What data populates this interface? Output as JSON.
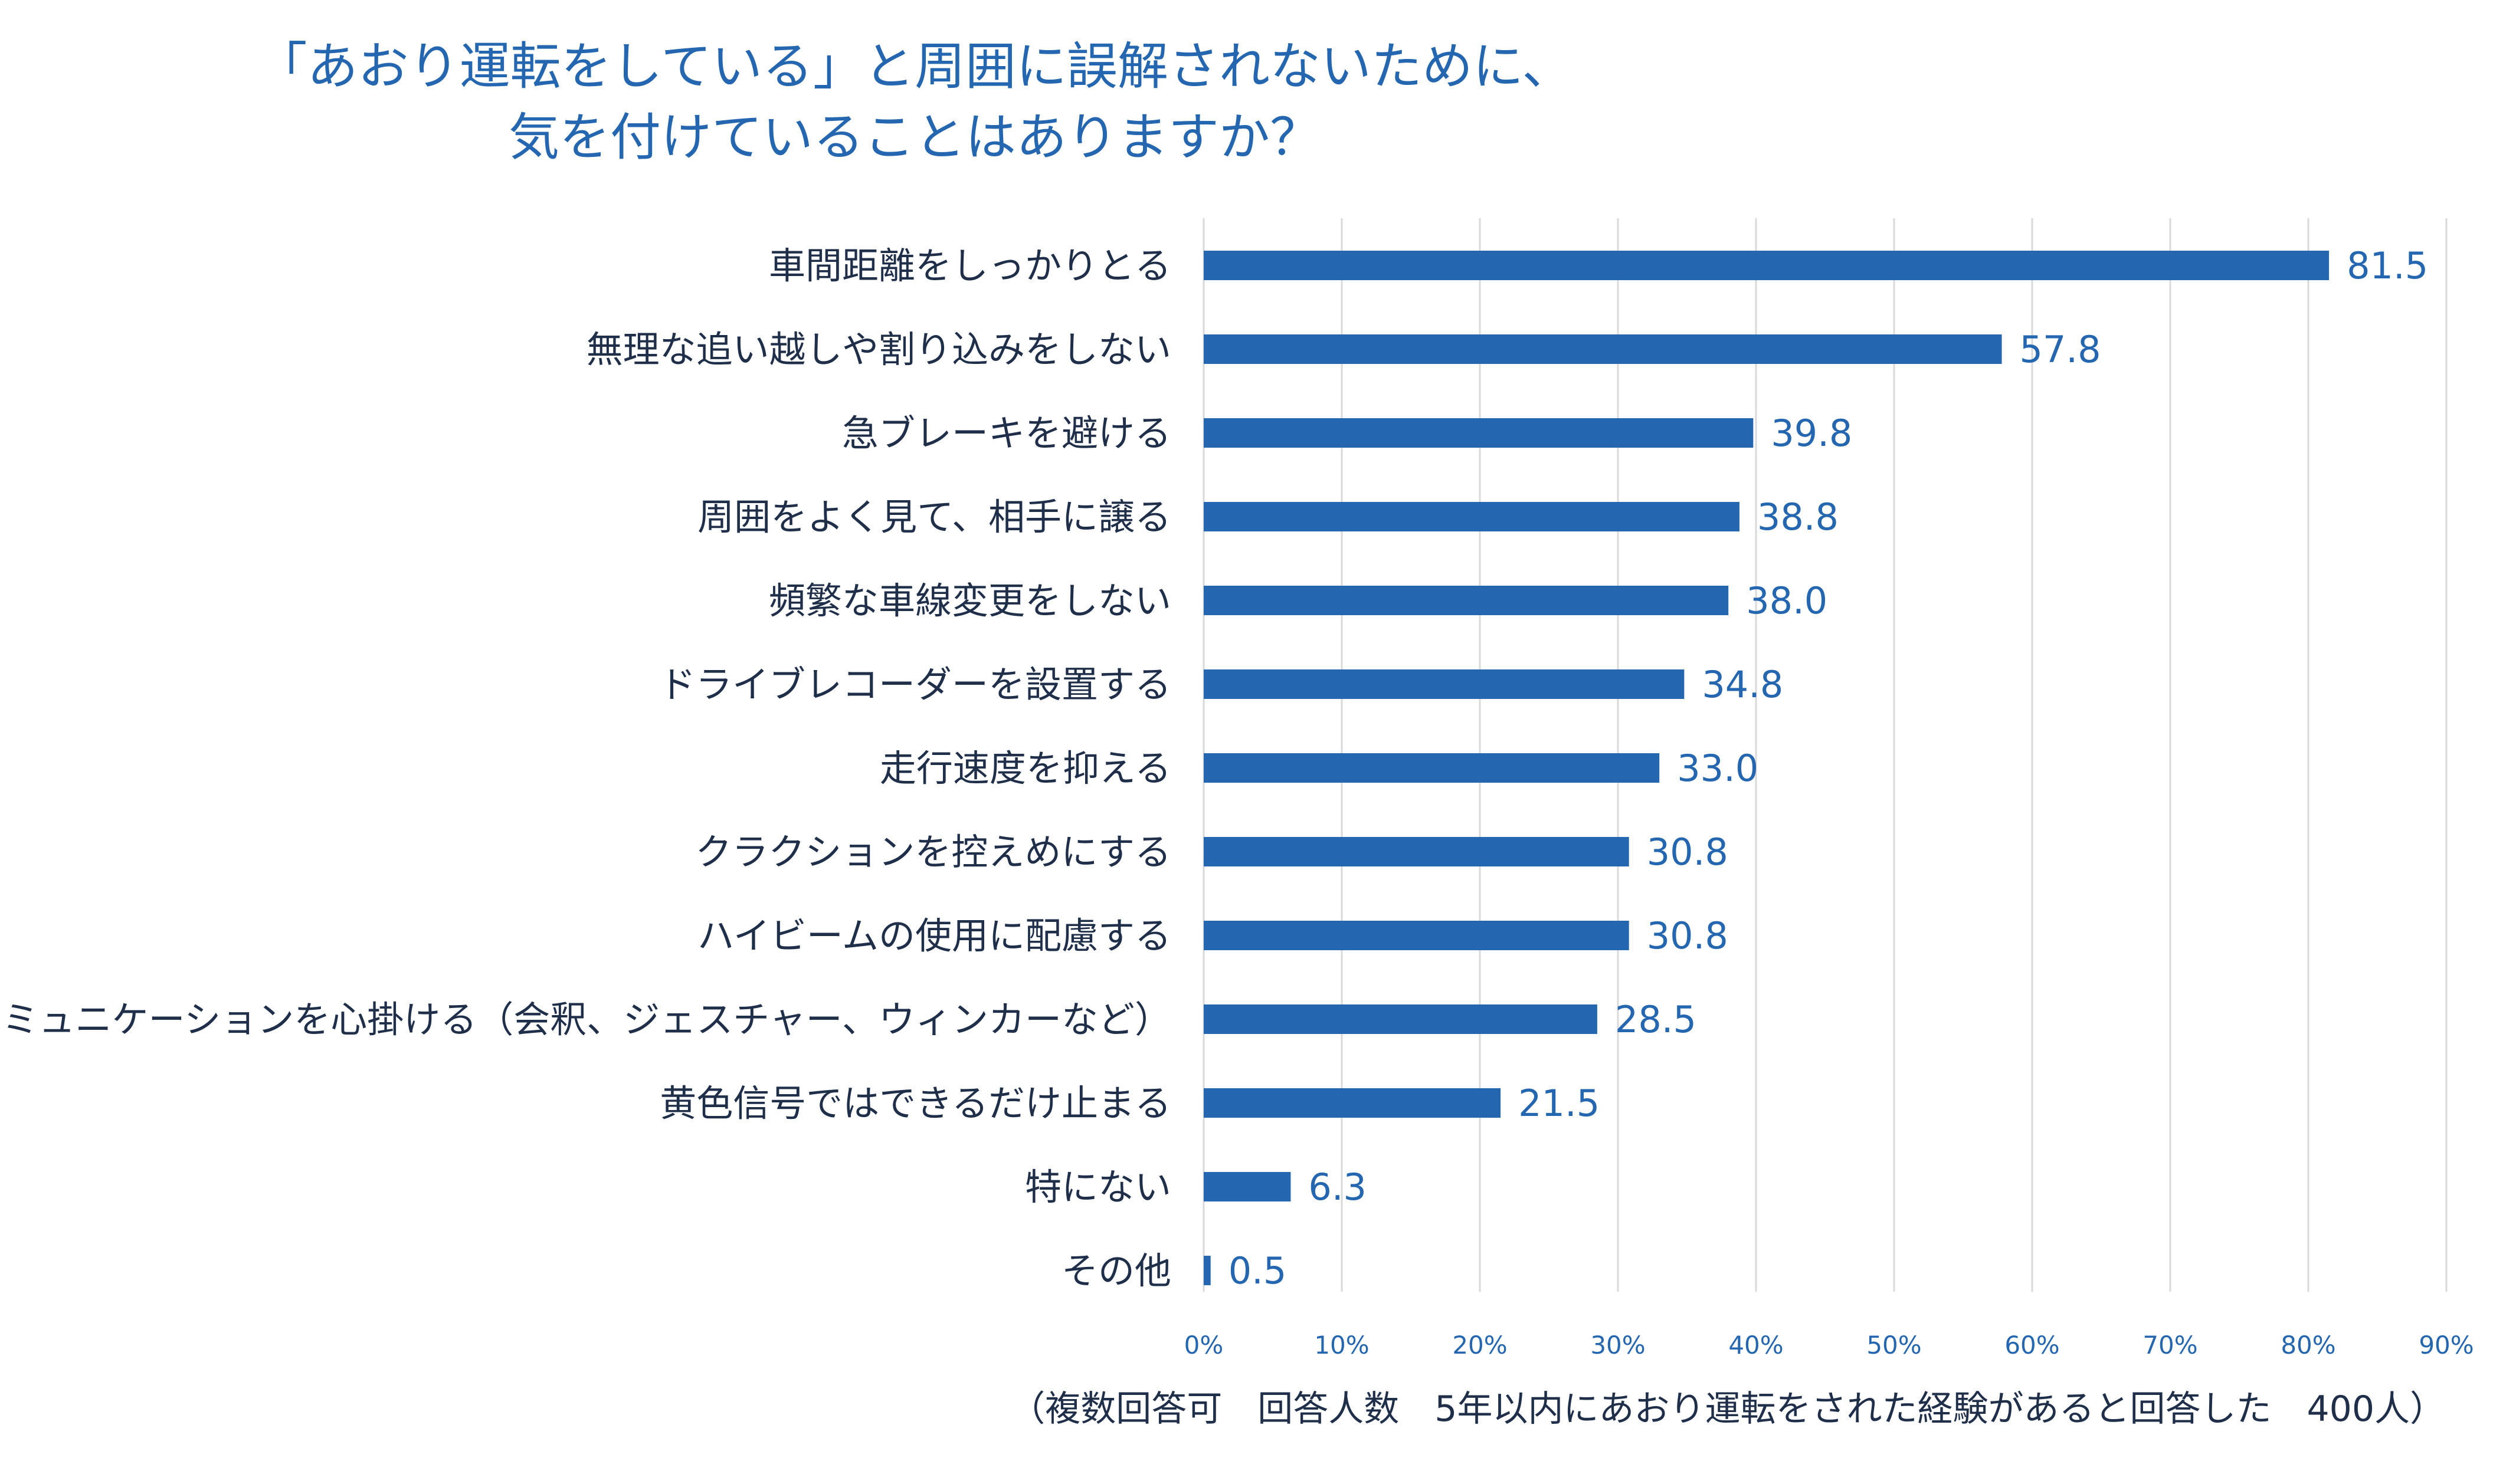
{
  "title_line1": "「あおり運転をしている」と周囲に誤解されないために、",
  "title_line2": "気を付けていることはありますか？",
  "note": "（複数回答可　回答人数　5年以内にあおり運転をされた経験があると回答した　400人）",
  "colors": {
    "bar": "#2467b0",
    "title": "#2467b0",
    "text": "#1f2f4a",
    "grid": "#d9d9d9"
  },
  "chart_data": {
    "type": "bar",
    "orientation": "horizontal",
    "categories": [
      "車間距離をしっかりとる",
      "無理な追い越しや割り込みをしない",
      "急ブレーキを避ける",
      "周囲をよく見て、相手に譲る",
      "頻繁な車線変更をしない",
      "ドライブレコーダーを設置する",
      "走行速度を抑える",
      "クラクションを控えめにする",
      "ハイビームの使用に配慮する",
      "コミュニケーションを心掛ける（会釈、ジェスチャー、ウィンカーなど）",
      "黄色信号ではできるだけ止まる",
      "特にない",
      "その他"
    ],
    "values": [
      81.5,
      57.8,
      39.8,
      38.8,
      38.0,
      34.8,
      33.0,
      30.8,
      30.8,
      28.5,
      21.5,
      6.3,
      0.5
    ],
    "value_labels": [
      "81.5",
      "57.8",
      "39.8",
      "38.8",
      "38.0",
      "34.8",
      "33.0",
      "30.8",
      "30.8",
      "28.5",
      "21.5",
      "6.3",
      "0.5"
    ],
    "xlim": [
      0,
      90
    ],
    "xticks": [
      0,
      10,
      20,
      30,
      40,
      50,
      60,
      70,
      80,
      90
    ],
    "xtick_labels": [
      "0%",
      "10%",
      "20%",
      "30%",
      "40%",
      "50%",
      "60%",
      "70%",
      "80%",
      "90%"
    ],
    "grid": true,
    "legend": "none"
  }
}
